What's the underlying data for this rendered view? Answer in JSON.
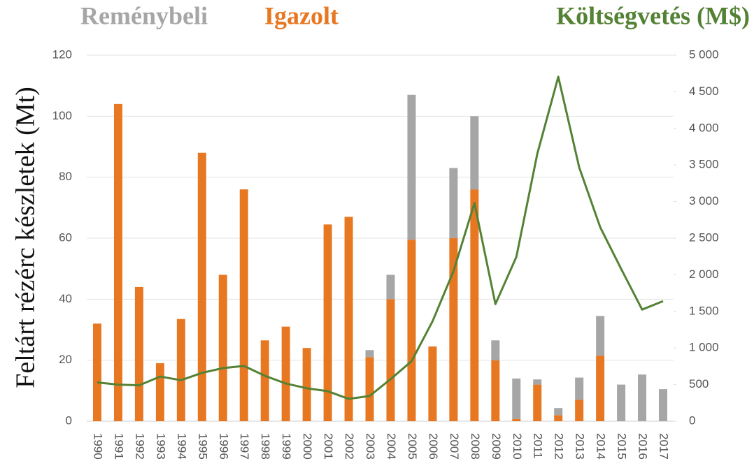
{
  "chart_data": {
    "type": "bar",
    "ylabel": "Feltárt rézérc készletek (Mt)",
    "categories": [
      "1990",
      "1991",
      "1992",
      "1993",
      "1994",
      "1995",
      "1996",
      "1997",
      "1998",
      "1999",
      "2000",
      "2001",
      "2002",
      "2003",
      "2004",
      "2005",
      "2006",
      "2007",
      "2008",
      "2009",
      "2010",
      "2011",
      "2012",
      "2013",
      "2014",
      "2015",
      "2016",
      "2017"
    ],
    "series": [
      {
        "name": "Igazolt",
        "type": "bar",
        "color": "#e87722",
        "values": [
          32,
          104,
          44,
          19,
          33.5,
          88,
          48,
          76,
          26.5,
          31,
          24,
          64.5,
          67,
          21,
          40,
          59.5,
          24.5,
          60,
          76,
          20,
          0.7,
          12,
          2,
          7,
          21.5,
          0,
          0,
          0
        ]
      },
      {
        "name": "Reménybeli",
        "type": "bar",
        "color": "#a6a6a6",
        "values": [
          0,
          0,
          0,
          0,
          0,
          0,
          0,
          0,
          0,
          0,
          0,
          0,
          0,
          2.3,
          8,
          47.5,
          0,
          23,
          24,
          6.5,
          13.3,
          1.7,
          2.3,
          7.3,
          13,
          12,
          15.3,
          10.5
        ]
      },
      {
        "name": "Költségvetés (M$)",
        "type": "line",
        "axis": "y2",
        "color": "#548235",
        "values": [
          530,
          500,
          490,
          610,
          560,
          660,
          725,
          755,
          620,
          515,
          450,
          410,
          305,
          345,
          575,
          820,
          1365,
          2050,
          2980,
          1600,
          2245,
          3655,
          4705,
          3465,
          2650,
          2080,
          1525,
          1640
        ]
      }
    ],
    "ylim": [
      0,
      120
    ],
    "yticks": [
      0,
      20,
      40,
      60,
      80,
      100,
      120
    ],
    "y2lim": [
      0,
      5000
    ],
    "y2ticks": [
      0,
      500,
      {
        "value": 1000,
        "label": "1 000"
      },
      {
        "value": 1500,
        "label": "1 500"
      },
      {
        "value": 2000,
        "label": "2 000"
      },
      {
        "value": 2500,
        "label": "2 500"
      },
      {
        "value": 3000,
        "label": "3 000"
      },
      {
        "value": 3500,
        "label": "3 500"
      },
      {
        "value": 4000,
        "label": "4 000"
      },
      {
        "value": 4500,
        "label": "4 500"
      },
      {
        "value": 5000,
        "label": "5 000"
      }
    ],
    "grid": true
  }
}
